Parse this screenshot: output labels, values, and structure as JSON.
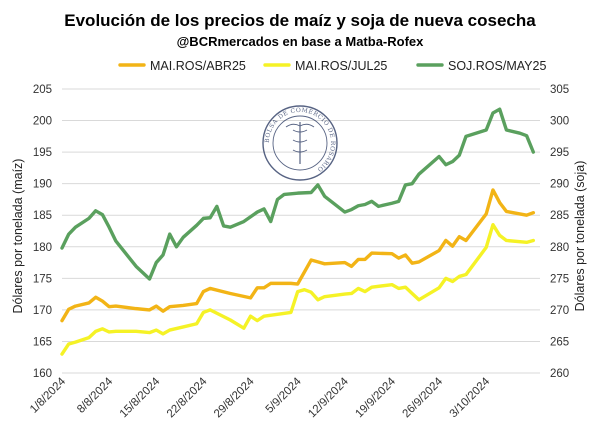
{
  "chart_data": {
    "type": "line",
    "title": "Evolución de los precios de maíz y soja de nueva cosecha",
    "subtitle": "@BCRmercados en base a Matba-Rofex",
    "ylabel_left": "Dólares por tonelada (maíz)",
    "ylabel_right": "Dólares por tonelada (soja)",
    "ylim_left": [
      160,
      205
    ],
    "ylim_right": [
      260,
      305
    ],
    "yticks_left": [
      160,
      165,
      170,
      175,
      180,
      185,
      190,
      195,
      200,
      205
    ],
    "yticks_right": [
      260,
      265,
      270,
      275,
      280,
      285,
      290,
      295,
      300,
      305
    ],
    "xticks": [
      {
        "label": "1/8/2024",
        "day": 1
      },
      {
        "label": "8/8/2024",
        "day": 8
      },
      {
        "label": "15/8/2024",
        "day": 15
      },
      {
        "label": "22/8/2024",
        "day": 22
      },
      {
        "label": "29/8/2024",
        "day": 29
      },
      {
        "label": "5/9/2024",
        "day": 36
      },
      {
        "label": "12/9/2024",
        "day": 43
      },
      {
        "label": "19/9/2024",
        "day": 50
      },
      {
        "label": "26/9/2024",
        "day": 57
      },
      {
        "label": "3/10/2024",
        "day": 64
      }
    ],
    "xlim": [
      1,
      70
    ],
    "grid": true,
    "legend_position": "top",
    "series": [
      {
        "name": "MAI.ROS/ABR25",
        "axis": "left",
        "color": "#f2b416",
        "points": [
          [
            1,
            168.3
          ],
          [
            2,
            170.1
          ],
          [
            3,
            170.6
          ],
          [
            5,
            171.1
          ],
          [
            6,
            172.0
          ],
          [
            7,
            171.4
          ],
          [
            8,
            170.5
          ],
          [
            9,
            170.6
          ],
          [
            12,
            170.2
          ],
          [
            14,
            170.0
          ],
          [
            15,
            170.6
          ],
          [
            16,
            169.8
          ],
          [
            17,
            170.5
          ],
          [
            19,
            170.7
          ],
          [
            21,
            171.0
          ],
          [
            22,
            172.9
          ],
          [
            23,
            173.4
          ],
          [
            26,
            172.6
          ],
          [
            29,
            171.9
          ],
          [
            30,
            173.5
          ],
          [
            31,
            173.5
          ],
          [
            32,
            174.2
          ],
          [
            35,
            174.2
          ],
          [
            36,
            174.1
          ],
          [
            38,
            177.9
          ],
          [
            39,
            177.6
          ],
          [
            40,
            177.3
          ],
          [
            43,
            177.5
          ],
          [
            44,
            176.9
          ],
          [
            45,
            178.0
          ],
          [
            46,
            178.0
          ],
          [
            47,
            179.0
          ],
          [
            50,
            178.9
          ],
          [
            51,
            178.2
          ],
          [
            52,
            178.7
          ],
          [
            53,
            177.4
          ],
          [
            54,
            177.6
          ],
          [
            57,
            179.4
          ],
          [
            58,
            181.0
          ],
          [
            59,
            180.1
          ],
          [
            60,
            181.6
          ],
          [
            61,
            181.0
          ],
          [
            64,
            185.2
          ],
          [
            65,
            189.0
          ],
          [
            66,
            187.0
          ],
          [
            67,
            185.6
          ],
          [
            70,
            185.0
          ],
          [
            71,
            185.4
          ]
        ]
      },
      {
        "name": "MAI.ROS/JUL25",
        "axis": "left",
        "color": "#f5f226",
        "points": [
          [
            1,
            163.0
          ],
          [
            2,
            164.6
          ],
          [
            3,
            164.9
          ],
          [
            5,
            165.6
          ],
          [
            6,
            166.6
          ],
          [
            7,
            167.0
          ],
          [
            8,
            166.5
          ],
          [
            9,
            166.6
          ],
          [
            12,
            166.6
          ],
          [
            14,
            166.4
          ],
          [
            15,
            166.8
          ],
          [
            16,
            166.2
          ],
          [
            17,
            166.8
          ],
          [
            19,
            167.3
          ],
          [
            21,
            167.8
          ],
          [
            22,
            169.6
          ],
          [
            23,
            170.0
          ],
          [
            26,
            168.4
          ],
          [
            28,
            167.1
          ],
          [
            29,
            169.0
          ],
          [
            30,
            168.3
          ],
          [
            31,
            169.0
          ],
          [
            35,
            169.6
          ],
          [
            36,
            172.9
          ],
          [
            37,
            173.2
          ],
          [
            38,
            172.8
          ],
          [
            39,
            171.6
          ],
          [
            40,
            172.1
          ],
          [
            43,
            172.5
          ],
          [
            44,
            172.6
          ],
          [
            45,
            173.4
          ],
          [
            46,
            172.9
          ],
          [
            47,
            173.6
          ],
          [
            50,
            174.0
          ],
          [
            51,
            173.4
          ],
          [
            52,
            173.6
          ],
          [
            53,
            172.6
          ],
          [
            54,
            171.6
          ],
          [
            57,
            173.5
          ],
          [
            58,
            175.0
          ],
          [
            59,
            174.5
          ],
          [
            60,
            175.3
          ],
          [
            61,
            175.6
          ],
          [
            64,
            179.9
          ],
          [
            65,
            183.5
          ],
          [
            66,
            181.8
          ],
          [
            67,
            181.0
          ],
          [
            70,
            180.7
          ],
          [
            71,
            181.0
          ]
        ]
      },
      {
        "name": "SOJ.ROS/MAY25",
        "axis": "right",
        "color": "#5aa05e",
        "points": [
          [
            1,
            279.8
          ],
          [
            2,
            282.0
          ],
          [
            3,
            283.1
          ],
          [
            5,
            284.5
          ],
          [
            6,
            285.7
          ],
          [
            7,
            285.1
          ],
          [
            8,
            283.1
          ],
          [
            9,
            280.9
          ],
          [
            12,
            276.9
          ],
          [
            14,
            274.9
          ],
          [
            15,
            277.5
          ],
          [
            16,
            278.7
          ],
          [
            17,
            282.0
          ],
          [
            18,
            280.0
          ],
          [
            19,
            281.5
          ],
          [
            21,
            283.4
          ],
          [
            22,
            284.5
          ],
          [
            23,
            284.6
          ],
          [
            24,
            286.4
          ],
          [
            25,
            283.3
          ],
          [
            26,
            283.1
          ],
          [
            28,
            284.0
          ],
          [
            30,
            285.5
          ],
          [
            31,
            286.0
          ],
          [
            32,
            284.0
          ],
          [
            33,
            287.5
          ],
          [
            34,
            288.3
          ],
          [
            36,
            288.5
          ],
          [
            38,
            288.6
          ],
          [
            39,
            289.8
          ],
          [
            40,
            288.0
          ],
          [
            43,
            285.5
          ],
          [
            44,
            285.9
          ],
          [
            45,
            286.5
          ],
          [
            46,
            286.7
          ],
          [
            47,
            287.2
          ],
          [
            48,
            286.4
          ],
          [
            50,
            286.9
          ],
          [
            51,
            287.2
          ],
          [
            52,
            289.8
          ],
          [
            53,
            290.0
          ],
          [
            54,
            291.5
          ],
          [
            57,
            294.3
          ],
          [
            58,
            293.0
          ],
          [
            59,
            293.5
          ],
          [
            60,
            294.5
          ],
          [
            61,
            297.5
          ],
          [
            64,
            298.5
          ],
          [
            65,
            301.2
          ],
          [
            66,
            301.8
          ],
          [
            67,
            298.5
          ],
          [
            69,
            298.0
          ],
          [
            70,
            297.6
          ],
          [
            71,
            295.0
          ]
        ]
      }
    ]
  },
  "watermark": {
    "text": "BOLSA DE COMERCIO DE ROSARIO"
  }
}
